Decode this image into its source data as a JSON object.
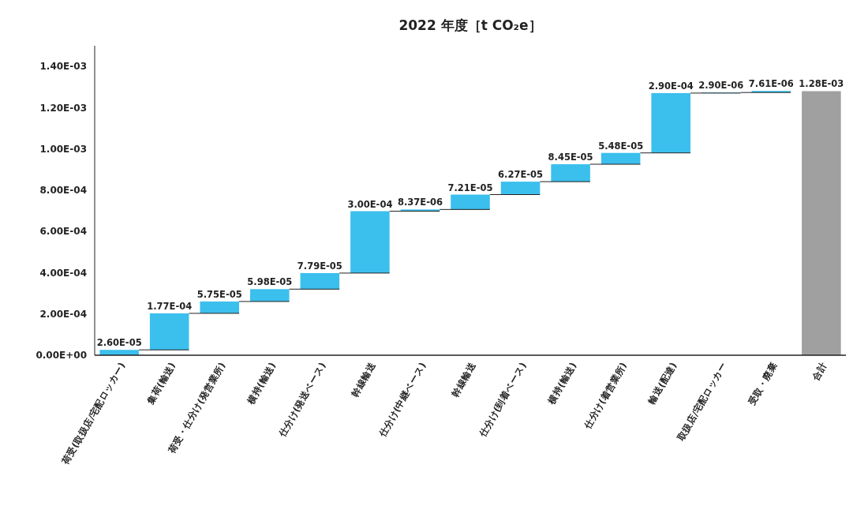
{
  "chart_data": {
    "type": "bar",
    "title": "2022 年度［t CO₂e］",
    "categories": [
      "荷受(取扱店/宅配ロッカー)",
      "集荷(輸送)",
      "荷受・仕分け(発営業所)",
      "横持(輸送)",
      "仕分け(発送ベース)",
      "幹線輸送",
      "仕分け(中継ベース)",
      "幹線輸送",
      "仕分け(到着ベース)",
      "横持(輸送)",
      "仕分け(着営業所)",
      "輸送(配達)",
      "取扱店/宅配ロッカー",
      "受取・廃棄",
      "合計"
    ],
    "values": [
      2.6e-05,
      0.000177,
      5.75e-05,
      5.98e-05,
      7.79e-05,
      0.0003,
      8.37e-06,
      7.21e-05,
      6.27e-05,
      8.45e-05,
      5.48e-05,
      0.00029,
      2.9e-06,
      7.61e-06,
      0.00128
    ],
    "base": [
      0,
      2.6e-05,
      0.000203,
      0.0002605,
      0.0003203,
      0.0003982,
      0.0006982,
      0.00070657,
      0.00077867,
      0.00084137,
      0.00092587,
      0.00098067,
      0.00127067,
      0.00127357,
      0
    ],
    "colors": [
      "#3bbfed",
      "#3bbfed",
      "#3bbfed",
      "#3bbfed",
      "#3bbfed",
      "#3bbfed",
      "#3bbfed",
      "#3bbfed",
      "#3bbfed",
      "#3bbfed",
      "#3bbfed",
      "#3bbfed",
      "#3bbfed",
      "#3bbfed",
      "#a0a0a0"
    ],
    "value_labels": [
      "2.60E-05",
      "1.77E-04",
      "5.75E-05",
      "5.98E-05",
      "7.79E-05",
      "3.00E-04",
      "8.37E-06",
      "7.21E-05",
      "6.27E-05",
      "8.45E-05",
      "5.48E-05",
      "2.90E-04",
      "2.90E-06",
      "7.61E-06",
      "1.28E-03"
    ],
    "ylim": [
      0,
      0.0015
    ],
    "yticks": [
      {
        "value": 0,
        "label": "0.00E+00"
      },
      {
        "value": 0.0002,
        "label": "2.00E-04"
      },
      {
        "value": 0.0004,
        "label": "4.00E-04"
      },
      {
        "value": 0.0006,
        "label": "6.00E-04"
      },
      {
        "value": 0.0008,
        "label": "8.00E-04"
      },
      {
        "value": 0.001,
        "label": "1.00E-03"
      },
      {
        "value": 0.0012,
        "label": "1.20E-03"
      },
      {
        "value": 0.0014,
        "label": "1.40E-03"
      }
    ],
    "grid": false
  }
}
